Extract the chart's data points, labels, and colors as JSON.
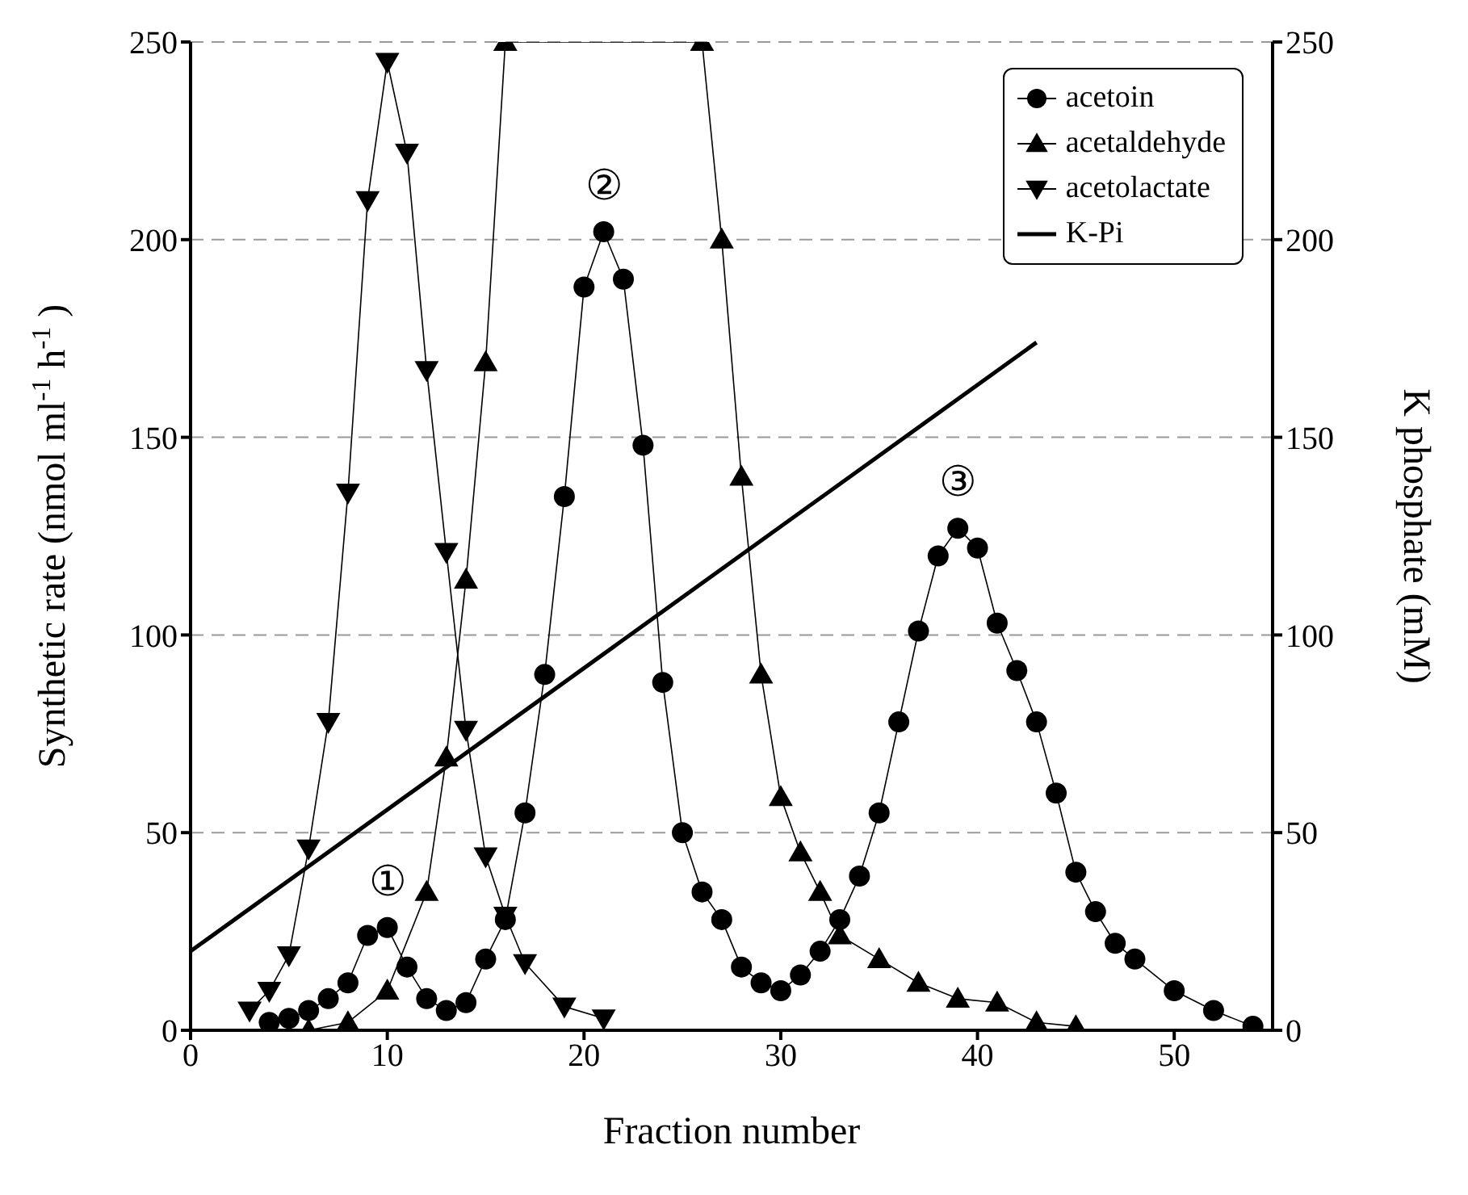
{
  "chart_data": {
    "type": "line",
    "xlabel": "Fraction number",
    "ylabel": "Synthetic rate (nmol ml$^{-1}$ h$^{-1}$)",
    "y2label": "K phosphate (mM)",
    "xlim": [
      0,
      55
    ],
    "xticks": [
      0,
      10,
      20,
      30,
      40,
      50
    ],
    "ylim": [
      0,
      250
    ],
    "yticks": [
      0,
      50,
      100,
      150,
      200,
      250
    ],
    "y2lim": [
      0,
      250
    ],
    "y2ticks": [
      0,
      50,
      100,
      150,
      200,
      250
    ],
    "grid": "y",
    "legend": "top right",
    "series": [
      {
        "name": "acetoin",
        "color": "#000000",
        "marker": "circle",
        "x": [
          4,
          5,
          6,
          7,
          8,
          9,
          10,
          11,
          12,
          13,
          14,
          15,
          16,
          17,
          18,
          19,
          20,
          21,
          22,
          23,
          24,
          25,
          26,
          27,
          28,
          29,
          30,
          31,
          32,
          33,
          34,
          35,
          36,
          37,
          38,
          39,
          40,
          41,
          42,
          43,
          44,
          45,
          46,
          47,
          48,
          50,
          52,
          54
        ],
        "values": [
          2,
          3,
          5,
          8,
          12,
          24,
          26,
          16,
          8,
          5,
          7,
          18,
          28,
          55,
          90,
          135,
          188,
          202,
          190,
          148,
          88,
          50,
          35,
          28,
          16,
          12,
          10,
          14,
          20,
          28,
          39,
          55,
          78,
          101,
          120,
          127,
          122,
          103,
          91,
          78,
          60,
          40,
          30,
          22,
          18,
          10,
          5,
          1
        ]
      },
      {
        "name": "acetaldehyde",
        "color": "#000000",
        "marker": "triangle",
        "x": [
          6,
          8,
          10,
          12,
          13,
          14,
          15,
          16,
          26,
          27,
          28,
          29,
          30,
          31,
          32,
          33,
          35,
          37,
          39,
          41,
          43,
          45
        ],
        "values": [
          0,
          2,
          10,
          35,
          69,
          114,
          169,
          250,
          250,
          200,
          140,
          90,
          59,
          45,
          35,
          24,
          18,
          12,
          8,
          7,
          2,
          1
        ]
      },
      {
        "name": "acetolactate",
        "color": "#000000",
        "marker": "triangle-down",
        "x": [
          3,
          4,
          5,
          6,
          7,
          8,
          9,
          10,
          11,
          12,
          13,
          14,
          15,
          16,
          17,
          19,
          21
        ],
        "values": [
          5,
          10,
          19,
          46,
          78,
          136,
          210,
          245,
          222,
          167,
          121,
          76,
          44,
          29,
          17,
          6,
          3
        ]
      },
      {
        "name": "K-Pi",
        "color": "#000000",
        "marker": "none",
        "axis": "y2",
        "x": [
          0,
          43
        ],
        "values": [
          20,
          174
        ]
      }
    ],
    "annotations": [
      {
        "text": "①",
        "x": 10,
        "y": 26
      },
      {
        "text": "②",
        "x": 21,
        "y": 202
      },
      {
        "text": "③",
        "x": 39,
        "y": 127
      }
    ]
  }
}
